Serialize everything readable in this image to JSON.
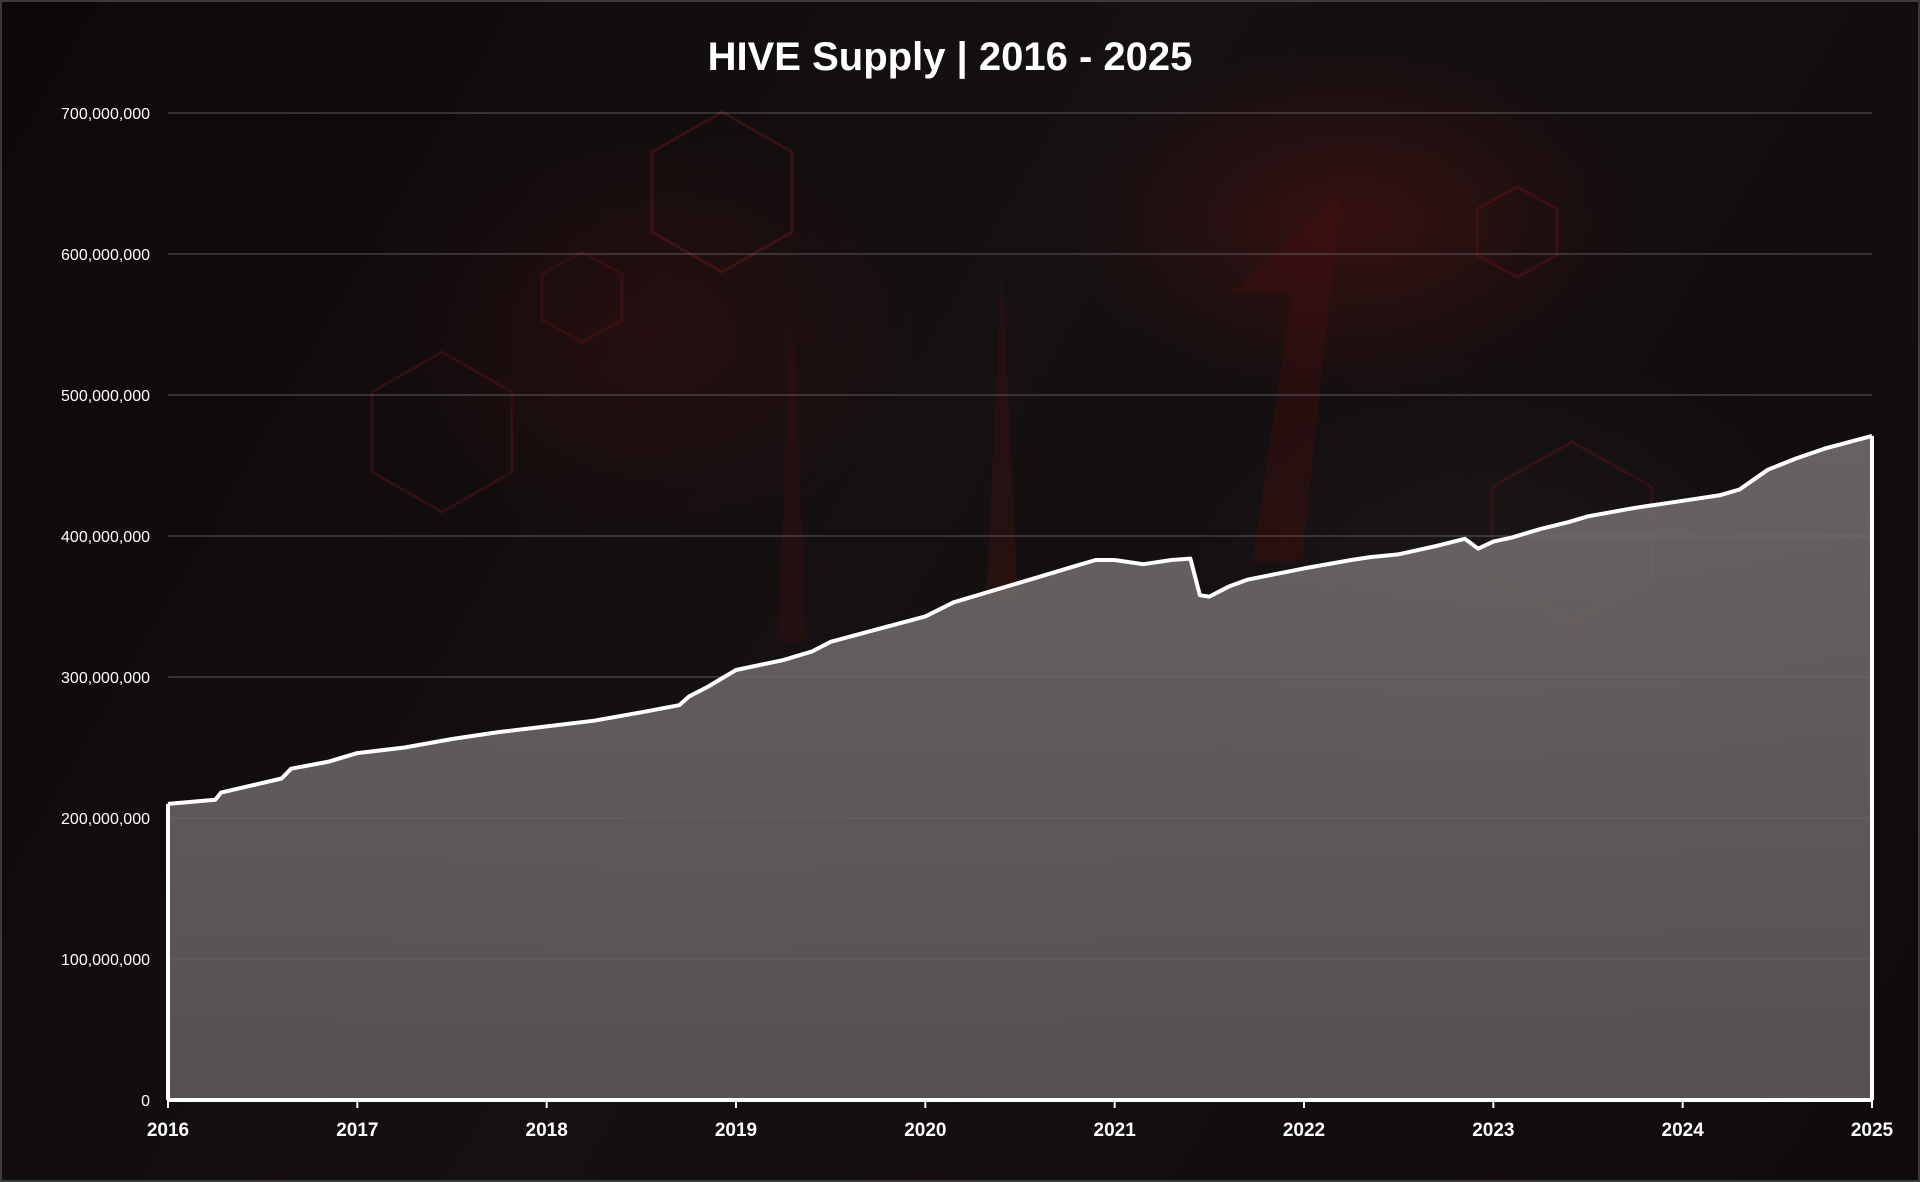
{
  "chart_data": {
    "type": "area",
    "title": "HIVE Supply | 2016 - 2025",
    "xlabel": "",
    "ylabel": "",
    "x_ticks": [
      "2016",
      "2017",
      "2018",
      "2019",
      "2020",
      "2021",
      "2022",
      "2023",
      "2024",
      "2025"
    ],
    "y_ticks": [
      "0",
      "100,000,000",
      "200,000,000",
      "300,000,000",
      "400,000,000",
      "500,000,000",
      "600,000,000",
      "700,000,000"
    ],
    "xlim": [
      2016,
      2025
    ],
    "ylim": [
      0,
      700000000
    ],
    "grid": true,
    "legend": "none",
    "colors": {
      "line": "#ffffff",
      "fill": "#6b6868",
      "grid": "#8a8a8a",
      "text": "#ffffff"
    },
    "series": [
      {
        "x": [
          2016.0,
          2016.25,
          2016.28,
          2016.6,
          2016.65,
          2016.85,
          2017.0,
          2017.25,
          2017.5,
          2017.75,
          2018.0,
          2018.25,
          2018.5,
          2018.7,
          2018.75,
          2018.85,
          2019.0,
          2019.25,
          2019.4,
          2019.5,
          2019.75,
          2020.0,
          2020.15,
          2020.4,
          2020.6,
          2020.8,
          2020.9,
          2021.0,
          2021.15,
          2021.3,
          2021.4,
          2021.45,
          2021.5,
          2021.6,
          2021.7,
          2021.85,
          2022.0,
          2022.25,
          2022.35,
          2022.5,
          2022.7,
          2022.85,
          2022.92,
          2023.0,
          2023.1,
          2023.25,
          2023.4,
          2023.5,
          2023.75,
          2024.0,
          2024.2,
          2024.3,
          2024.45,
          2024.6,
          2024.75,
          2025.0
        ],
        "y": [
          210000000,
          213000000,
          218000000,
          228000000,
          235000000,
          240000000,
          246000000,
          250000000,
          256000000,
          261000000,
          265000000,
          269000000,
          275000000,
          280000000,
          286000000,
          293000000,
          305000000,
          312000000,
          318000000,
          325000000,
          334000000,
          343000000,
          353000000,
          363000000,
          371000000,
          379000000,
          383000000,
          383000000,
          380000000,
          383000000,
          384000000,
          358000000,
          357000000,
          364000000,
          369000000,
          373000000,
          377000000,
          383000000,
          385000000,
          387000000,
          393000000,
          398000000,
          391000000,
          396000000,
          399000000,
          405000000,
          410000000,
          414000000,
          420000000,
          425000000,
          429000000,
          433000000,
          447000000,
          455000000,
          462000000,
          471000000
        ]
      }
    ]
  }
}
